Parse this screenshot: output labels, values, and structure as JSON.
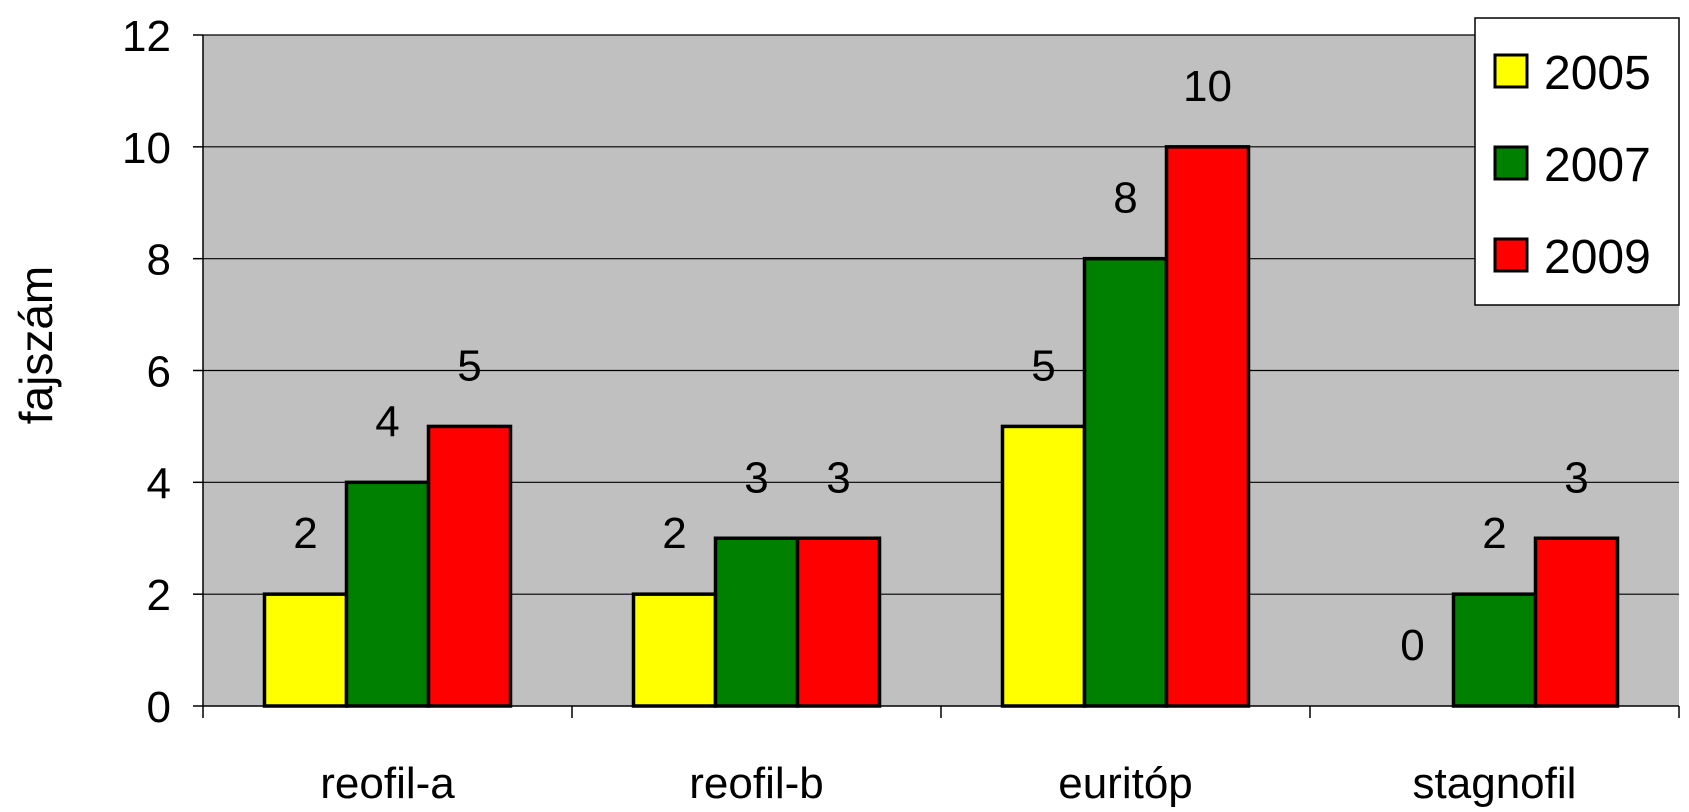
{
  "chart_data": {
    "type": "bar",
    "title": "",
    "xlabel": "",
    "ylabel": "fajszám",
    "ylim": [
      0,
      12
    ],
    "yticks": [
      0,
      2,
      4,
      6,
      8,
      10,
      12
    ],
    "grid": true,
    "legend_position": "top-right",
    "categories": [
      "reofil-a",
      "reofil-b",
      "euritóp",
      "stagnofil"
    ],
    "series": [
      {
        "name": "2005",
        "color": "#ffff00",
        "values": [
          2,
          2,
          5,
          0
        ]
      },
      {
        "name": "2007",
        "color": "#008000",
        "values": [
          4,
          3,
          8,
          2
        ]
      },
      {
        "name": "2009",
        "color": "#ff0000",
        "values": [
          5,
          3,
          10,
          3
        ]
      }
    ],
    "data_labels": [
      [
        "2",
        "2",
        "5",
        "0"
      ],
      [
        "4",
        "3",
        "8",
        "2"
      ],
      [
        "5",
        "3",
        "10",
        "3"
      ]
    ],
    "plot_background": "#c0c0c0"
  }
}
